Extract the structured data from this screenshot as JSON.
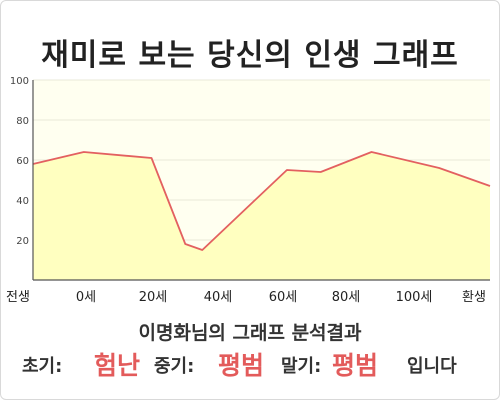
{
  "title": "재미로 보는 당신의 인생 그래프",
  "result": {
    "caption": "이명화님의 그래프 분석결과",
    "early_label": "초기:",
    "early_value": "험난",
    "middle_label": "중기:",
    "middle_value": "평범",
    "late_label": "말기:",
    "late_value": "평범",
    "ending": "입니다"
  },
  "colors": {
    "plot_bg": "#fffff0",
    "area_fill": "#ffffc0",
    "line": "#e36060",
    "verdict": "#e35b5b"
  },
  "chart_data": {
    "type": "area",
    "categories": [
      "전생",
      "0세",
      "20세",
      "40세",
      "60세",
      "80세",
      "100세",
      "환생"
    ],
    "x": [
      -20,
      -5,
      15,
      25,
      30,
      45,
      55,
      65,
      80,
      100,
      115
    ],
    "y": [
      58,
      64,
      61,
      18,
      15,
      39,
      55,
      54,
      64,
      56,
      47
    ],
    "yticks": [
      20,
      40,
      60,
      80,
      100
    ],
    "xlim": [
      -20,
      115
    ],
    "ylim": [
      0,
      100
    ],
    "grid": true
  }
}
